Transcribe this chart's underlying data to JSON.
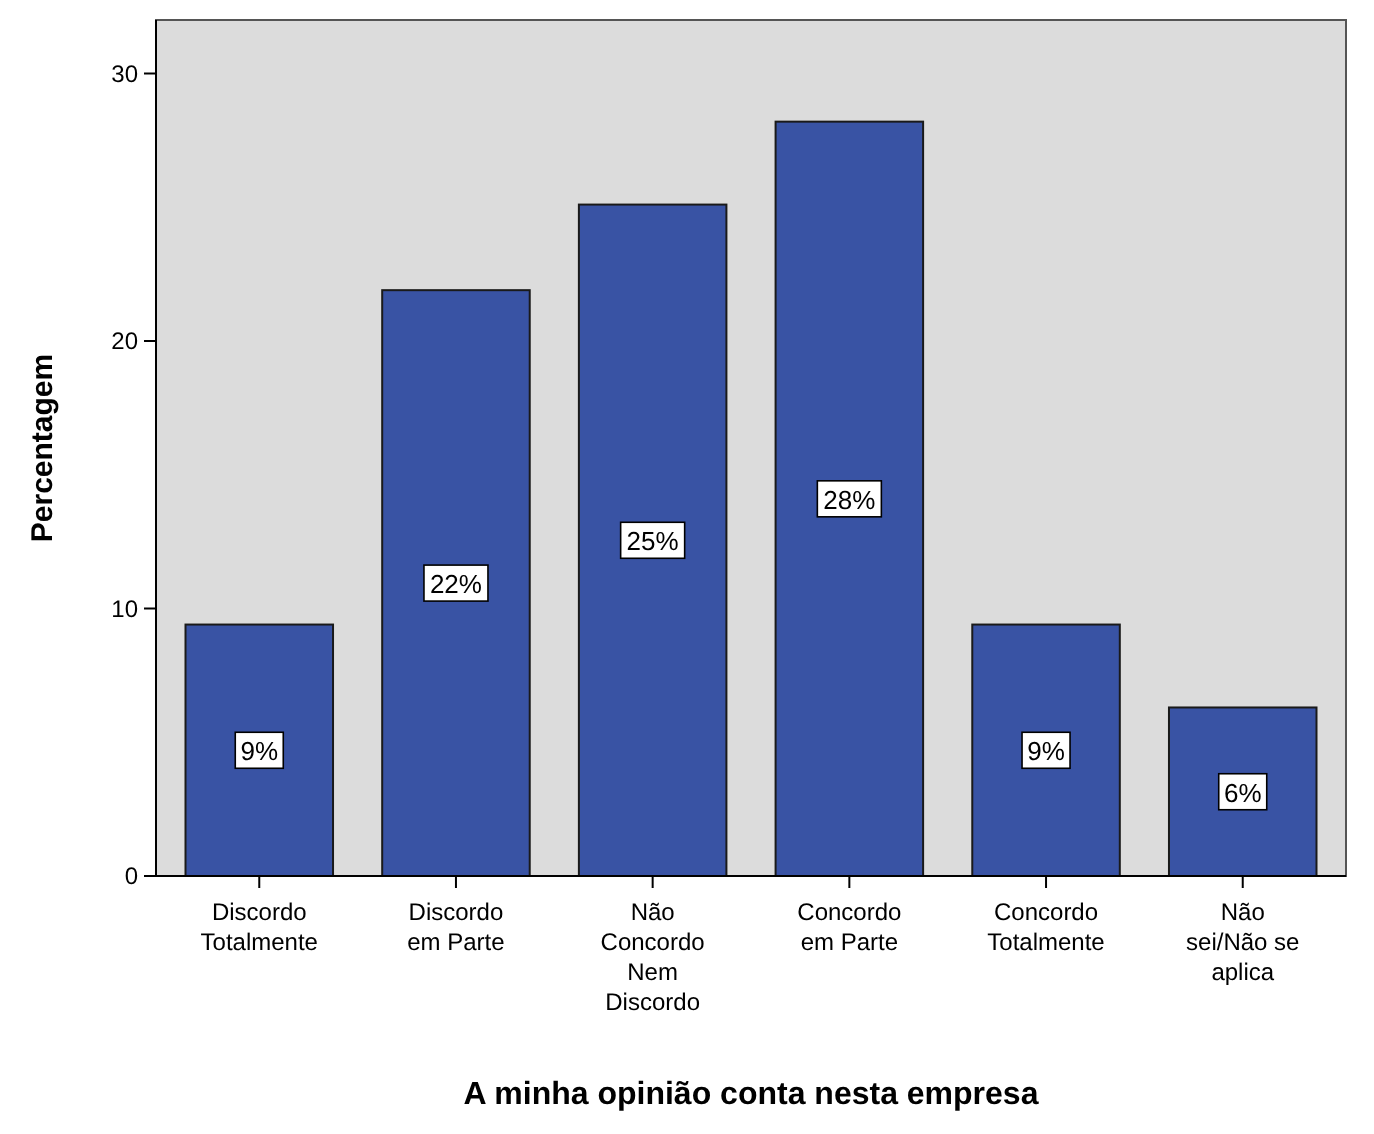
{
  "chart_data": {
    "type": "bar",
    "xlabel": "A minha opinião conta nesta empresa",
    "ylabel": "Percentagem",
    "categories": [
      "Discordo Totalmente",
      "Discordo em Parte",
      "Não Concordo Nem Discordo",
      "Concordo em Parte",
      "Concordo Totalmente",
      "Não sei/Não se aplica"
    ],
    "values": [
      9.4,
      21.9,
      25.1,
      28.2,
      9.4,
      6.3
    ],
    "value_labels": [
      "9%",
      "22%",
      "25%",
      "28%",
      "9%",
      "6%"
    ],
    "color": "#3953a4",
    "ylim": [
      0,
      32
    ],
    "yticks": [
      0,
      10,
      20,
      30
    ],
    "grid": false
  }
}
